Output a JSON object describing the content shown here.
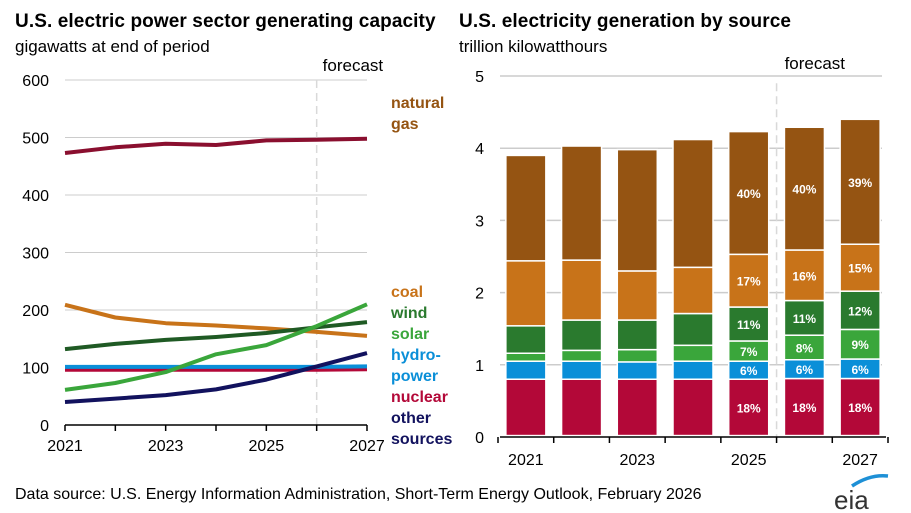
{
  "footer": {
    "source": "Data source: U.S. Energy Information Administration, Short-Term Energy Outlook, February 2026",
    "logo_text": "eia"
  },
  "colors": {
    "natural_gas": "#955412",
    "coal": "#c87319",
    "wind": "#2a7a2e",
    "wind_line": "#1f5a24",
    "solar": "#3aa63b",
    "hydropower": "#0a8fd8",
    "nuclear": "#b30838",
    "nuclear_line": "#b30838",
    "natgas_line": "#8a0f2f",
    "other": "#12125e",
    "grid": "#cccccc",
    "forecast_line": "#d9d9d9"
  },
  "chart_data": [
    {
      "type": "line",
      "title": "U.S. electric power sector generating capacity",
      "subtitle": "gigawatts at end of period",
      "xlabel": "",
      "ylabel": "gigawatts",
      "ylim": [
        0,
        600
      ],
      "yticks": [
        "0",
        "100",
        "200",
        "300",
        "400",
        "500",
        "600"
      ],
      "x": [
        2021,
        2022,
        2023,
        2024,
        2025,
        2026,
        2027
      ],
      "xtick_labels": [
        "2021",
        "2023",
        "2025",
        "2027"
      ],
      "forecast_label": "forecast",
      "forecast_start": 2026,
      "grid": true,
      "legend_placement": "right",
      "series": [
        {
          "key": "natural_gas",
          "name": "natural gas",
          "label_lines": [
            "natural",
            "gas"
          ],
          "values": [
            473,
            483,
            489,
            487,
            495,
            496,
            498
          ]
        },
        {
          "key": "coal",
          "name": "coal",
          "label_lines": [
            "coal"
          ],
          "values": [
            209,
            187,
            177,
            173,
            168,
            162,
            155
          ]
        },
        {
          "key": "wind",
          "name": "wind",
          "label_lines": [
            "wind"
          ],
          "values": [
            132,
            141,
            148,
            153,
            160,
            170,
            179
          ]
        },
        {
          "key": "solar",
          "name": "solar",
          "label_lines": [
            "solar"
          ],
          "values": [
            61,
            73,
            92,
            123,
            139,
            172,
            210
          ]
        },
        {
          "key": "hydropower",
          "name": "hydropower",
          "label_lines": [
            "hydro-",
            "power"
          ],
          "values": [
            101,
            101,
            101,
            101,
            101,
            101,
            102
          ]
        },
        {
          "key": "nuclear",
          "name": "nuclear",
          "label_lines": [
            "nuclear"
          ],
          "values": [
            96,
            96,
            96,
            96,
            96,
            96,
            97
          ]
        },
        {
          "key": "other",
          "name": "other sources",
          "label_lines": [
            "other",
            "sources"
          ],
          "values": [
            40,
            46,
            52,
            62,
            79,
            102,
            125
          ]
        }
      ]
    },
    {
      "type": "bar",
      "stacked": true,
      "title": "U.S. electricity generation by source",
      "subtitle": "trillion kilowatthours",
      "xlabel": "",
      "ylabel": "trillion kilowatthours",
      "ylim": [
        0,
        5
      ],
      "yticks": [
        "0",
        "1",
        "2",
        "3",
        "4",
        "5"
      ],
      "categories": [
        "2021",
        "2022",
        "2023",
        "2024",
        "2025",
        "2026",
        "2027"
      ],
      "xtick_labels": [
        "2021",
        "2023",
        "2025",
        "2027"
      ],
      "forecast_label": "forecast",
      "forecast_start": "2026",
      "grid": true,
      "series": [
        {
          "key": "other",
          "name": "other sources",
          "values": [
            0.02,
            0.02,
            0.02,
            0.02,
            0.02,
            0.02,
            0.02
          ],
          "labels": [
            "",
            "",
            "",
            "",
            "",
            "",
            ""
          ]
        },
        {
          "key": "nuclear",
          "name": "nuclear",
          "values": [
            0.78,
            0.78,
            0.78,
            0.78,
            0.78,
            0.79,
            0.79
          ],
          "labels": [
            "",
            "",
            "",
            "",
            "18%",
            "18%",
            "18%"
          ]
        },
        {
          "key": "hydropower",
          "name": "hydropower",
          "values": [
            0.25,
            0.25,
            0.24,
            0.25,
            0.25,
            0.26,
            0.27
          ],
          "labels": [
            "",
            "",
            "",
            "",
            "6%",
            "6%",
            "6%"
          ]
        },
        {
          "key": "solar",
          "name": "solar",
          "values": [
            0.11,
            0.15,
            0.17,
            0.22,
            0.28,
            0.34,
            0.41
          ],
          "labels": [
            "",
            "",
            "",
            "",
            "7%",
            "8%",
            "9%"
          ]
        },
        {
          "key": "wind",
          "name": "wind",
          "values": [
            0.38,
            0.42,
            0.41,
            0.44,
            0.47,
            0.48,
            0.53
          ],
          "labels": [
            "",
            "",
            "",
            "",
            "11%",
            "11%",
            "12%"
          ]
        },
        {
          "key": "coal",
          "name": "coal",
          "values": [
            0.9,
            0.83,
            0.68,
            0.64,
            0.73,
            0.7,
            0.65
          ],
          "labels": [
            "",
            "",
            "",
            "",
            "17%",
            "16%",
            "15%"
          ]
        },
        {
          "key": "natural_gas",
          "name": "natural gas",
          "values": [
            1.46,
            1.58,
            1.68,
            1.77,
            1.7,
            1.7,
            1.73
          ],
          "labels": [
            "",
            "",
            "",
            "",
            "40%",
            "40%",
            "39%"
          ]
        }
      ]
    }
  ]
}
